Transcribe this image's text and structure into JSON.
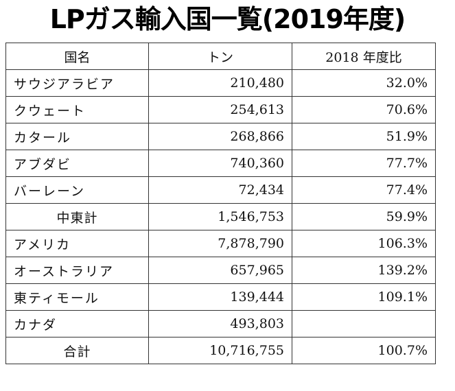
{
  "title": "LPガス輸入国一覧(2019年度)",
  "table": {
    "headers": [
      "国名",
      "トン",
      "2018 年度比"
    ],
    "rows": [
      {
        "name": "サウジアラビア",
        "tons": "210,480",
        "ratio": "32.0%",
        "align": "left"
      },
      {
        "name": "クウェート",
        "tons": "254,613",
        "ratio": "70.6%",
        "align": "left"
      },
      {
        "name": "カタール",
        "tons": "268,866",
        "ratio": "51.9%",
        "align": "left"
      },
      {
        "name": "アブダビ",
        "tons": "740,360",
        "ratio": "77.7%",
        "align": "left"
      },
      {
        "name": "バーレーン",
        "tons": "72,434",
        "ratio": "77.4%",
        "align": "left"
      },
      {
        "name": "中東計",
        "tons": "1,546,753",
        "ratio": "59.9%",
        "align": "center"
      },
      {
        "name": "アメリカ",
        "tons": "7,878,790",
        "ratio": "106.3%",
        "align": "left"
      },
      {
        "name": "オーストラリア",
        "tons": "657,965",
        "ratio": "139.2%",
        "align": "left"
      },
      {
        "name": "東ティモール",
        "tons": "139,444",
        "ratio": "109.1%",
        "align": "left"
      },
      {
        "name": "カナダ",
        "tons": "493,803",
        "ratio": "",
        "align": "left"
      },
      {
        "name": "合計",
        "tons": "10,716,755",
        "ratio": "100.7%",
        "align": "center"
      }
    ]
  }
}
